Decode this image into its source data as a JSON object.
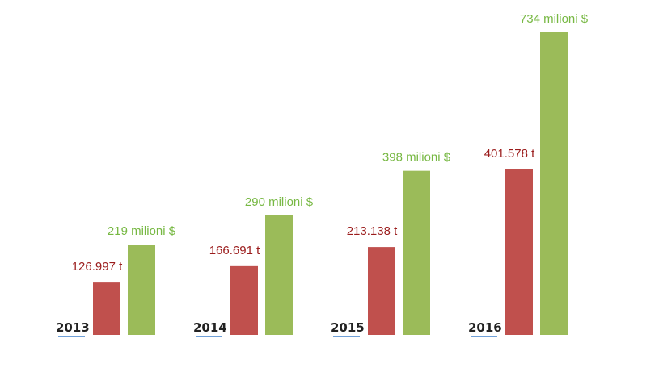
{
  "chart_data": {
    "type": "bar",
    "categories": [
      "2013",
      "2014",
      "2015",
      "2016"
    ],
    "series": [
      {
        "values": [
          126.997,
          166.691,
          213.138,
          401.578
        ],
        "labels": [
          "126.997 t",
          "166.691 t",
          "213.138 t",
          "401.578 t"
        ],
        "color": "#c0504d",
        "label_color": "#9b1c1c"
      },
      {
        "values": [
          219,
          290,
          398,
          734
        ],
        "labels": [
          "219 milioni $",
          "290 milioni $",
          "398 milioni $",
          "734 milioni $"
        ],
        "color": "#9bbb59",
        "label_color": "#77b843"
      }
    ],
    "ylim": [
      0,
      734
    ],
    "grid": false,
    "axis_underline_color": "#6fa0d8"
  }
}
